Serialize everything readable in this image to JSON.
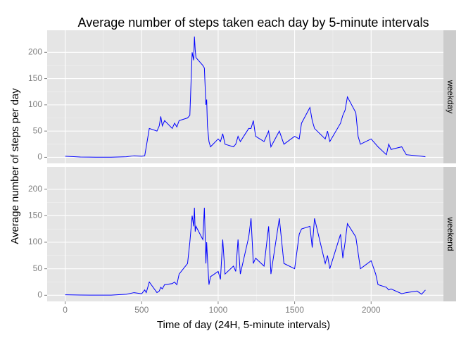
{
  "chart_data": {
    "type": "line",
    "title": "Average number of steps taken each day by 5-minute intervals",
    "x_label": "Time of day (24H, 5-minute intervals)",
    "y_label": "Average number of steps per day",
    "facet": true,
    "x": [
      0,
      100,
      200,
      300,
      400,
      450,
      500,
      520,
      530,
      550,
      600,
      615,
      625,
      635,
      650,
      700,
      715,
      730,
      745,
      800,
      815,
      830,
      840,
      845,
      850,
      855,
      900,
      910,
      920,
      925,
      930,
      940,
      950,
      1000,
      1015,
      1030,
      1045,
      1100,
      1115,
      1130,
      1145,
      1200,
      1215,
      1230,
      1245,
      1300,
      1330,
      1345,
      1400,
      1430,
      1500,
      1530,
      1545,
      1600,
      1615,
      1630,
      1700,
      1715,
      1730,
      1800,
      1815,
      1830,
      1845,
      1900,
      1915,
      1930,
      2000,
      2030,
      2045,
      2100,
      2115,
      2130,
      2200,
      2230,
      2300,
      2330,
      2355
    ],
    "series": [
      {
        "name": "weekday",
        "color": "#0000ff",
        "values": [
          2,
          0.5,
          0.3,
          0.2,
          1,
          3,
          2,
          3,
          20,
          55,
          50,
          60,
          78,
          60,
          70,
          55,
          65,
          58,
          70,
          75,
          80,
          200,
          185,
          230,
          205,
          190,
          175,
          170,
          100,
          110,
          60,
          30,
          20,
          35,
          30,
          45,
          25,
          20,
          25,
          40,
          30,
          55,
          55,
          70,
          40,
          30,
          50,
          20,
          50,
          25,
          40,
          35,
          65,
          95,
          70,
          55,
          35,
          50,
          30,
          65,
          80,
          90,
          115,
          85,
          40,
          25,
          35,
          25,
          20,
          5,
          25,
          15,
          20,
          5,
          3,
          2,
          1
        ]
      },
      {
        "name": "weekend",
        "color": "#0000ff",
        "values": [
          1,
          0.5,
          0.2,
          0.3,
          2,
          5,
          3,
          10,
          5,
          25,
          5,
          8,
          15,
          12,
          20,
          22,
          25,
          20,
          40,
          60,
          100,
          150,
          130,
          165,
          120,
          130,
          105,
          165,
          60,
          100,
          70,
          20,
          35,
          45,
          30,
          105,
          40,
          55,
          45,
          105,
          40,
          110,
          145,
          60,
          70,
          55,
          130,
          40,
          145,
          60,
          50,
          115,
          125,
          130,
          90,
          145,
          60,
          75,
          50,
          115,
          70,
          100,
          135,
          110,
          80,
          50,
          65,
          40,
          20,
          15,
          10,
          12,
          3,
          5,
          8,
          2,
          10
        ]
      }
    ],
    "xlim": [
      -117.75,
      2472.75
    ],
    "xticks": [
      0,
      500,
      1000,
      1500,
      2000
    ],
    "ylim": [
      -11.5,
      242
    ],
    "yticks": [
      0,
      50,
      100,
      150,
      200
    ],
    "grid": true
  }
}
